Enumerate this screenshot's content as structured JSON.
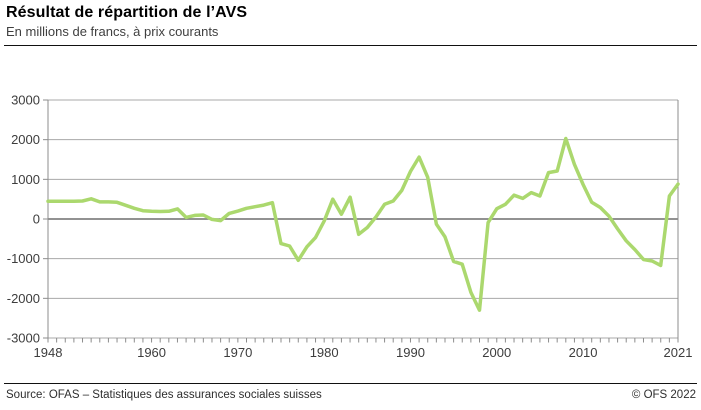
{
  "header": {
    "title": "Résultat de répartition de l’AVS",
    "subtitle": "En millions de francs, à prix courants"
  },
  "footer": {
    "source": "Source: OFAS – Statistiques des assurances sociales suisses",
    "copyright": "© OFS 2022"
  },
  "chart_data": {
    "type": "line",
    "title": "Résultat de répartition de l’AVS",
    "subtitle": "En millions de francs, à prix courants",
    "xlabel": "",
    "ylabel": "En millions de francs, à prix courants",
    "x_range": [
      1948,
      2021
    ],
    "ylim": [
      -3000,
      3000
    ],
    "yticks": [
      3000,
      2000,
      1000,
      0,
      -1000,
      -2000,
      -3000
    ],
    "xticks": [
      1948,
      1960,
      1970,
      1980,
      1990,
      2000,
      2010,
      2021
    ],
    "grid": true,
    "legend": false,
    "line_color": "#abd86e",
    "grid_color": "#a8a8a8",
    "zero_line_color": "#6e6e6e",
    "axis_color": "#8c8c8c",
    "tick_label_color": "#3d3d3d",
    "x": [
      1948,
      1949,
      1950,
      1951,
      1952,
      1953,
      1954,
      1955,
      1956,
      1957,
      1958,
      1959,
      1960,
      1961,
      1962,
      1963,
      1964,
      1965,
      1966,
      1967,
      1968,
      1969,
      1970,
      1971,
      1972,
      1973,
      1974,
      1975,
      1976,
      1977,
      1978,
      1979,
      1980,
      1981,
      1982,
      1983,
      1984,
      1985,
      1986,
      1987,
      1988,
      1989,
      1990,
      1991,
      1992,
      1993,
      1994,
      1995,
      1996,
      1997,
      1998,
      1999,
      2000,
      2001,
      2002,
      2003,
      2004,
      2005,
      2006,
      2007,
      2008,
      2009,
      2010,
      2011,
      2012,
      2013,
      2014,
      2015,
      2016,
      2017,
      2018,
      2019,
      2020,
      2021
    ],
    "series": [
      {
        "name": "Résultat de répartition de l’AVS (millions de francs)",
        "values": [
          450,
          450,
          445,
          450,
          455,
          510,
          430,
          430,
          420,
          345,
          270,
          210,
          195,
          190,
          195,
          255,
          40,
          90,
          100,
          -10,
          -40,
          140,
          200,
          270,
          310,
          350,
          410,
          -620,
          -680,
          -1040,
          -700,
          -470,
          -50,
          500,
          120,
          550,
          -385,
          -215,
          50,
          370,
          455,
          720,
          1200,
          1560,
          1050,
          -130,
          -450,
          -1070,
          -1140,
          -1850,
          -2300,
          -90,
          260,
          370,
          600,
          520,
          665,
          580,
          1170,
          1210,
          2030,
          1380,
          870,
          420,
          290,
          70,
          -250,
          -550,
          -770,
          -1020,
          -1060,
          -1170,
          580,
          880
        ]
      }
    ]
  }
}
